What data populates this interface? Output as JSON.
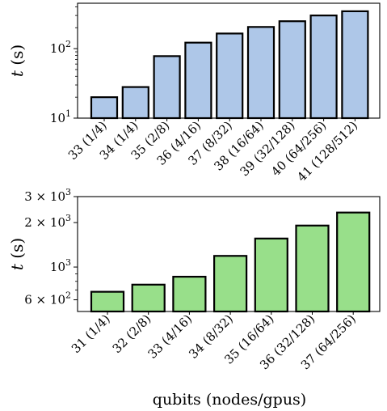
{
  "chart_data": [
    {
      "type": "bar",
      "ylabel": "t (s)",
      "yscale": "log",
      "ylim": [
        10,
        450
      ],
      "ytick_labels": [
        "10^1",
        "10^2"
      ],
      "bar_color": "#aec7e8",
      "categories": [
        "33 (1/4)",
        "34 (1/4)",
        "35 (2/8)",
        "36 (4/16)",
        "37 (8/32)",
        "38 (16/64)",
        "39 (32/128)",
        "40 (64/256)",
        "41 (128/512)"
      ],
      "values": [
        20,
        28,
        78,
        122,
        165,
        205,
        248,
        300,
        345
      ]
    },
    {
      "type": "bar",
      "ylabel": "t (s)",
      "xlabel": "qubits (nodes/gpus)",
      "yscale": "log",
      "ylim": [
        500,
        3000
      ],
      "ytick_labels": [
        "6 × 10^2",
        "10^3",
        "2 × 10^3",
        "3 × 10^3"
      ],
      "bar_color": "#98df8a",
      "categories": [
        "31 (1/4)",
        "32 (2/8)",
        "33 (4/16)",
        "34 (8/32)",
        "35 (16/64)",
        "36 (32/128)",
        "37 (64/256)"
      ],
      "values": [
        680,
        760,
        860,
        1190,
        1560,
        1910,
        2340
      ]
    }
  ]
}
